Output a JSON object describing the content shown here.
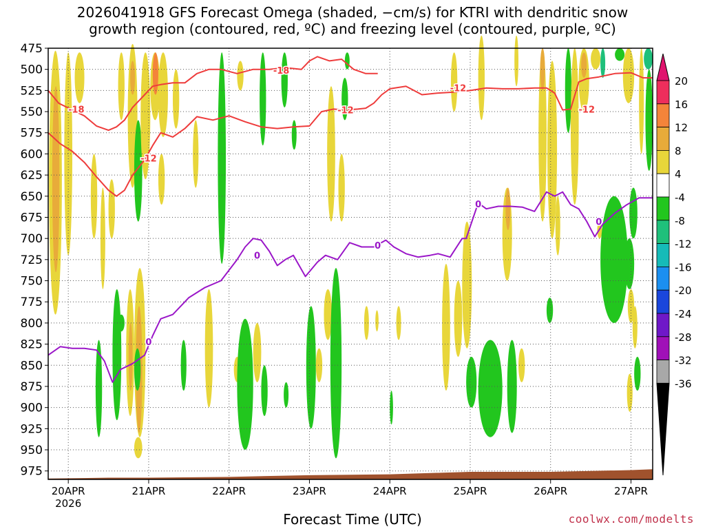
{
  "chart_data": {
    "type": "heatmap",
    "title_line1": "2026041918 GFS Forecast Omega (shaded, −cm/s) for KTRI with dendritic snow",
    "title_line2": "growth region (contoured, red, ºC) and freezing level (contoured, purple, ºC)",
    "xlabel": "Forecast Time (UTC)",
    "credit": "coolwx.com/modelts",
    "x_ticks": [
      "20APR",
      "21APR",
      "22APR",
      "23APR",
      "24APR",
      "25APR",
      "26APR",
      "27APR"
    ],
    "x_year": "2026",
    "y_ticks": [
      475,
      500,
      525,
      550,
      575,
      600,
      625,
      650,
      675,
      700,
      725,
      750,
      775,
      800,
      825,
      850,
      875,
      900,
      925,
      950,
      975
    ],
    "ylim": [
      475,
      985
    ],
    "xlim_days": [
      -0.25,
      7.27
    ],
    "colorbar": {
      "labels": [
        20,
        16,
        12,
        8,
        4,
        -4,
        -8,
        -12,
        -16,
        -20,
        -24,
        -28,
        -32,
        -36
      ],
      "colors": [
        "#ee2e5c",
        "#f4843a",
        "#e8ab3a",
        "#e8d63a",
        "#ffffff",
        "#22c61e",
        "#1fc07b",
        "#16bbb8",
        "#1b8ff0",
        "#1a46dc",
        "#6f18c8",
        "#a010b8",
        "#a8a8a8"
      ],
      "top_color": "#e0146e",
      "bottom_color": "#000000"
    },
    "series": [
      {
        "name": "-18",
        "color": "#ee3b3b",
        "x": [
          -0.25,
          -0.12,
          0.05,
          0.2,
          0.35,
          0.5,
          0.6,
          0.7,
          0.8,
          0.95,
          1.05,
          1.15,
          1.3,
          1.45,
          1.6,
          1.75,
          1.9,
          2.1,
          2.3,
          2.5,
          2.7,
          2.9,
          3.0,
          3.1,
          3.25,
          3.4,
          3.55,
          3.7,
          3.85
        ],
        "y": [
          525,
          540,
          548,
          555,
          567,
          572,
          568,
          560,
          545,
          530,
          520,
          518,
          516,
          516,
          505,
          500,
          500,
          505,
          500,
          500,
          498,
          500,
          490,
          485,
          490,
          488,
          500,
          505,
          505
        ],
        "labels": [
          {
            "text": "-18",
            "x": 0.1,
            "y": 547
          },
          {
            "text": "-18",
            "x": 2.65,
            "y": 501
          }
        ]
      },
      {
        "name": "-12 (lower)",
        "color": "#ee3b3b",
        "x": [
          -0.25,
          -0.1,
          0.05,
          0.2,
          0.35,
          0.5,
          0.6,
          0.7,
          0.8,
          0.95,
          1.05,
          1.15,
          1.3,
          1.45,
          1.6,
          1.8,
          2.0,
          2.2,
          2.4,
          2.6,
          2.8,
          3.0,
          3.15,
          3.3,
          3.45,
          3.6,
          3.7,
          3.8,
          3.9,
          4.0,
          4.2,
          4.4,
          4.6,
          4.8,
          5.0,
          5.2,
          5.4,
          5.6,
          5.8,
          5.95,
          6.05,
          6.15,
          6.25,
          6.35,
          6.45,
          6.6,
          6.8,
          7.0,
          7.15,
          7.27
        ],
        "y": [
          575,
          588,
          597,
          610,
          627,
          643,
          650,
          643,
          625,
          607,
          590,
          575,
          580,
          570,
          556,
          560,
          555,
          562,
          568,
          570,
          568,
          567,
          550,
          547,
          548,
          547,
          546,
          540,
          530,
          523,
          520,
          530,
          528,
          527,
          525,
          522,
          523,
          523,
          522,
          522,
          528,
          548,
          547,
          515,
          511,
          509,
          505,
          504,
          510,
          510
        ],
        "labels": [
          {
            "text": "-12",
            "x": 1.0,
            "y": 605
          },
          {
            "text": "-12",
            "x": 3.45,
            "y": 548
          },
          {
            "text": "-12",
            "x": 4.85,
            "y": 522
          },
          {
            "text": "-12",
            "x": 6.45,
            "y": 547
          }
        ]
      },
      {
        "name": "0",
        "color": "#9a16c8",
        "x": [
          -0.25,
          -0.1,
          0.05,
          0.2,
          0.35,
          0.45,
          0.55,
          0.65,
          0.8,
          0.95,
          1.05,
          1.15,
          1.3,
          1.5,
          1.7,
          1.9,
          2.1,
          2.2,
          2.3,
          2.4,
          2.5,
          2.6,
          2.7,
          2.8,
          2.95,
          3.1,
          3.2,
          3.35,
          3.5,
          3.65,
          3.8,
          3.95,
          4.05,
          4.2,
          4.35,
          4.5,
          4.6,
          4.75,
          4.9,
          4.95,
          5.1,
          5.2,
          5.35,
          5.5,
          5.65,
          5.8,
          5.95,
          6.05,
          6.15,
          6.25,
          6.35,
          6.45,
          6.55,
          6.65,
          6.8,
          6.95,
          7.1,
          7.27
        ],
        "y": [
          838,
          828,
          830,
          830,
          832,
          845,
          870,
          855,
          848,
          838,
          815,
          795,
          790,
          770,
          758,
          750,
          725,
          710,
          700,
          702,
          715,
          732,
          725,
          720,
          745,
          728,
          720,
          725,
          705,
          710,
          710,
          702,
          710,
          718,
          722,
          720,
          718,
          722,
          700,
          700,
          658,
          665,
          662,
          662,
          663,
          668,
          645,
          650,
          645,
          660,
          665,
          680,
          698,
          683,
          670,
          660,
          652,
          652
        ],
        "labels": [
          {
            "text": "0",
            "x": 1.0,
            "y": 822
          },
          {
            "text": "0",
            "x": 2.35,
            "y": 720
          },
          {
            "text": "0",
            "x": 3.85,
            "y": 708
          },
          {
            "text": "0",
            "x": 5.1,
            "y": 659
          },
          {
            "text": "0",
            "x": 6.6,
            "y": 680
          }
        ]
      }
    ],
    "omega_regions": [
      {
        "value": 6,
        "x0": -0.24,
        "x1": -0.08,
        "p0": 478,
        "p1": 790
      },
      {
        "value": 10,
        "x0": -0.2,
        "x1": -0.11,
        "p0": 520,
        "p1": 740
      },
      {
        "value": 6,
        "x0": -0.05,
        "x1": 0.05,
        "p0": 480,
        "p1": 720
      },
      {
        "value": 6,
        "x0": 0.08,
        "x1": 0.2,
        "p0": 480,
        "p1": 540
      },
      {
        "value": 6,
        "x0": 0.28,
        "x1": 0.36,
        "p0": 600,
        "p1": 700
      },
      {
        "value": 6,
        "x0": 0.4,
        "x1": 0.46,
        "p0": 640,
        "p1": 760
      },
      {
        "value": 6,
        "x0": 0.5,
        "x1": 0.58,
        "p0": 630,
        "p1": 700
      },
      {
        "value": 6,
        "x0": 0.62,
        "x1": 0.7,
        "p0": 480,
        "p1": 560
      },
      {
        "value": 6,
        "x0": 0.74,
        "x1": 0.86,
        "p0": 470,
        "p1": 640
      },
      {
        "value": 10,
        "x0": 0.77,
        "x1": 0.83,
        "p0": 490,
        "p1": 530
      },
      {
        "value": -6,
        "x0": 0.82,
        "x1": 0.92,
        "p0": 560,
        "p1": 680
      },
      {
        "value": 6,
        "x0": 0.9,
        "x1": 1.02,
        "p0": 480,
        "p1": 630
      },
      {
        "value": 6,
        "x0": 1.02,
        "x1": 1.14,
        "p0": 480,
        "p1": 560
      },
      {
        "value": 14,
        "x0": 1.05,
        "x1": 1.12,
        "p0": 480,
        "p1": 530
      },
      {
        "value": 6,
        "x0": 1.12,
        "x1": 1.24,
        "p0": 480,
        "p1": 580
      },
      {
        "value": 6,
        "x0": 1.12,
        "x1": 1.2,
        "p0": 600,
        "p1": 660
      },
      {
        "value": 6,
        "x0": 1.3,
        "x1": 1.38,
        "p0": 500,
        "p1": 570
      },
      {
        "value": 6,
        "x0": 1.55,
        "x1": 1.62,
        "p0": 560,
        "p1": 640
      },
      {
        "value": -6,
        "x0": 1.86,
        "x1": 1.96,
        "p0": 480,
        "p1": 730
      },
      {
        "value": 6,
        "x0": 2.1,
        "x1": 2.18,
        "p0": 490,
        "p1": 525
      },
      {
        "value": -6,
        "x0": 2.38,
        "x1": 2.46,
        "p0": 480,
        "p1": 590
      },
      {
        "value": -6,
        "x0": 2.65,
        "x1": 2.73,
        "p0": 480,
        "p1": 545
      },
      {
        "value": -6,
        "x0": 2.78,
        "x1": 2.84,
        "p0": 560,
        "p1": 595
      },
      {
        "value": 6,
        "x0": 3.22,
        "x1": 3.32,
        "p0": 520,
        "p1": 680
      },
      {
        "value": 6,
        "x0": 3.36,
        "x1": 3.44,
        "p0": 600,
        "p1": 680
      },
      {
        "value": -6,
        "x0": 3.4,
        "x1": 3.48,
        "p0": 510,
        "p1": 560
      },
      {
        "value": -6,
        "x0": 3.44,
        "x1": 3.5,
        "p0": 480,
        "p1": 500
      },
      {
        "value": 6,
        "x0": 4.76,
        "x1": 4.84,
        "p0": 480,
        "p1": 550
      },
      {
        "value": 6,
        "x0": 5.1,
        "x1": 5.18,
        "p0": 460,
        "p1": 560
      },
      {
        "value": 6,
        "x0": 5.55,
        "x1": 5.6,
        "p0": 460,
        "p1": 520
      },
      {
        "value": 6,
        "x0": 5.85,
        "x1": 5.95,
        "p0": 475,
        "p1": 680
      },
      {
        "value": 10,
        "x0": 5.87,
        "x1": 5.93,
        "p0": 475,
        "p1": 525
      },
      {
        "value": 6,
        "x0": 5.96,
        "x1": 6.08,
        "p0": 490,
        "p1": 700
      },
      {
        "value": -6,
        "x0": 6.18,
        "x1": 6.26,
        "p0": 475,
        "p1": 575
      },
      {
        "value": 6,
        "x0": 6.25,
        "x1": 6.35,
        "p0": 475,
        "p1": 660
      },
      {
        "value": 6,
        "x0": 6.35,
        "x1": 6.48,
        "p0": 475,
        "p1": 550
      },
      {
        "value": 10,
        "x0": 6.38,
        "x1": 6.45,
        "p0": 480,
        "p1": 510
      },
      {
        "value": 6,
        "x0": 6.5,
        "x1": 6.62,
        "p0": 475,
        "p1": 500
      },
      {
        "value": -10,
        "x0": 6.62,
        "x1": 6.68,
        "p0": 475,
        "p1": 510
      },
      {
        "value": -6,
        "x0": 6.7,
        "x1": 6.88,
        "p0": 650,
        "p1": 785
      },
      {
        "value": -12,
        "x0": 6.72,
        "x1": 6.87,
        "p0": 680,
        "p1": 740
      },
      {
        "value": -6,
        "x0": 6.8,
        "x1": 6.92,
        "p0": 475,
        "p1": 490
      },
      {
        "value": 6,
        "x0": 6.9,
        "x1": 7.04,
        "p0": 475,
        "p1": 540
      },
      {
        "value": -6,
        "x0": 6.98,
        "x1": 7.08,
        "p0": 640,
        "p1": 700
      },
      {
        "value": 6,
        "x0": 7.1,
        "x1": 7.16,
        "p0": 475,
        "p1": 600
      },
      {
        "value": -10,
        "x0": 7.16,
        "x1": 7.27,
        "p0": 475,
        "p1": 500
      },
      {
        "value": -6,
        "x0": 7.18,
        "x1": 7.27,
        "p0": 500,
        "p1": 620
      },
      {
        "value": 6,
        "x0": 0.72,
        "x1": 0.82,
        "p0": 760,
        "p1": 910
      },
      {
        "value": 10,
        "x0": 0.75,
        "x1": 0.8,
        "p0": 800,
        "p1": 880
      },
      {
        "value": 6,
        "x0": 0.82,
        "x1": 0.96,
        "p0": 735,
        "p1": 935
      },
      {
        "value": 10,
        "x0": 0.84,
        "x1": 0.92,
        "p0": 780,
        "p1": 930
      },
      {
        "value": 6,
        "x0": 0.82,
        "x1": 0.92,
        "p0": 935,
        "p1": 960
      },
      {
        "value": -6,
        "x0": 0.55,
        "x1": 0.66,
        "p0": 760,
        "p1": 915
      },
      {
        "value": -6,
        "x0": 0.82,
        "x1": 0.9,
        "p0": 830,
        "p1": 880
      },
      {
        "value": -6,
        "x0": 0.34,
        "x1": 0.42,
        "p0": 820,
        "p1": 935
      },
      {
        "value": -6,
        "x0": 0.62,
        "x1": 0.7,
        "p0": 790,
        "p1": 810
      },
      {
        "value": -6,
        "x0": 1.4,
        "x1": 1.47,
        "p0": 820,
        "p1": 880
      },
      {
        "value": 6,
        "x0": 1.7,
        "x1": 1.8,
        "p0": 760,
        "p1": 900
      },
      {
        "value": 6,
        "x0": 2.06,
        "x1": 2.14,
        "p0": 840,
        "p1": 870
      },
      {
        "value": -6,
        "x0": 2.1,
        "x1": 2.3,
        "p0": 795,
        "p1": 950
      },
      {
        "value": 6,
        "x0": 2.3,
        "x1": 2.4,
        "p0": 800,
        "p1": 870
      },
      {
        "value": -6,
        "x0": 2.4,
        "x1": 2.48,
        "p0": 850,
        "p1": 910
      },
      {
        "value": -6,
        "x0": 2.68,
        "x1": 2.74,
        "p0": 870,
        "p1": 900
      },
      {
        "value": -6,
        "x0": 2.96,
        "x1": 3.08,
        "p0": 780,
        "p1": 925
      },
      {
        "value": 6,
        "x0": 3.08,
        "x1": 3.16,
        "p0": 830,
        "p1": 870
      },
      {
        "value": 6,
        "x0": 3.18,
        "x1": 3.28,
        "p0": 760,
        "p1": 820
      },
      {
        "value": -6,
        "x0": 3.26,
        "x1": 3.4,
        "p0": 735,
        "p1": 960
      },
      {
        "value": 6,
        "x0": 3.68,
        "x1": 3.74,
        "p0": 780,
        "p1": 820
      },
      {
        "value": 6,
        "x0": 3.82,
        "x1": 3.86,
        "p0": 785,
        "p1": 810
      },
      {
        "value": -6,
        "x0": 4.0,
        "x1": 4.04,
        "p0": 880,
        "p1": 920
      },
      {
        "value": 6,
        "x0": 4.08,
        "x1": 4.14,
        "p0": 780,
        "p1": 820
      },
      {
        "value": 6,
        "x0": 4.65,
        "x1": 4.75,
        "p0": 730,
        "p1": 880
      },
      {
        "value": 6,
        "x0": 4.8,
        "x1": 4.9,
        "p0": 750,
        "p1": 840
      },
      {
        "value": 6,
        "x0": 4.9,
        "x1": 5.02,
        "p0": 680,
        "p1": 830
      },
      {
        "value": -6,
        "x0": 4.95,
        "x1": 5.08,
        "p0": 840,
        "p1": 900
      },
      {
        "value": -6,
        "x0": 5.1,
        "x1": 5.4,
        "p0": 820,
        "p1": 935
      },
      {
        "value": 6,
        "x0": 5.4,
        "x1": 5.52,
        "p0": 640,
        "p1": 750
      },
      {
        "value": 10,
        "x0": 5.44,
        "x1": 5.5,
        "p0": 640,
        "p1": 690
      },
      {
        "value": -6,
        "x0": 5.46,
        "x1": 5.58,
        "p0": 820,
        "p1": 930
      },
      {
        "value": 6,
        "x0": 5.6,
        "x1": 5.68,
        "p0": 830,
        "p1": 870
      },
      {
        "value": -6,
        "x0": 5.95,
        "x1": 6.03,
        "p0": 770,
        "p1": 800
      },
      {
        "value": 6,
        "x0": 6.06,
        "x1": 6.12,
        "p0": 650,
        "p1": 720
      },
      {
        "value": 6,
        "x0": 6.58,
        "x1": 6.64,
        "p0": 680,
        "p1": 700
      },
      {
        "value": -6,
        "x0": 6.62,
        "x1": 6.96,
        "p0": 650,
        "p1": 800
      },
      {
        "value": -6,
        "x0": 6.92,
        "x1": 7.04,
        "p0": 700,
        "p1": 760
      },
      {
        "value": 6,
        "x0": 6.96,
        "x1": 7.04,
        "p0": 760,
        "p1": 800
      },
      {
        "value": -6,
        "x0": 7.04,
        "x1": 7.12,
        "p0": 840,
        "p1": 880
      },
      {
        "value": 6,
        "x0": 6.95,
        "x1": 7.02,
        "p0": 860,
        "p1": 905
      },
      {
        "value": 6,
        "x0": 7.02,
        "x1": 7.08,
        "p0": 780,
        "p1": 830
      }
    ],
    "ground": {
      "color": "#a0522d",
      "p_top": 978
    }
  }
}
